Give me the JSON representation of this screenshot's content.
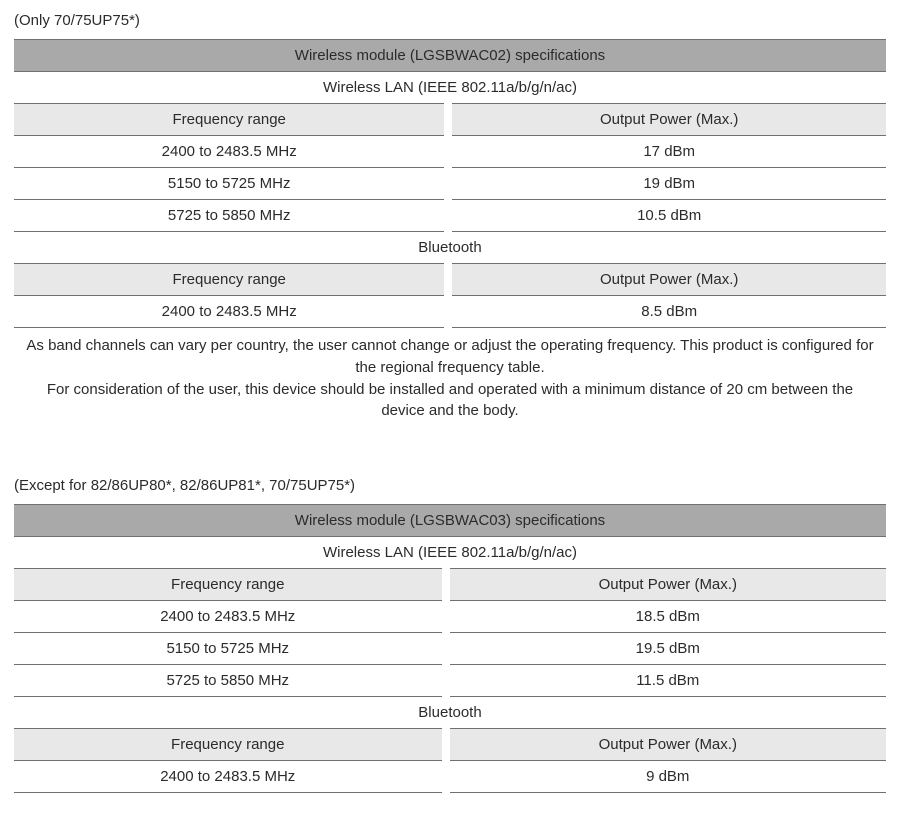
{
  "colors": {
    "title_bg": "#a9a9a9",
    "header_bg": "#e8e8e8",
    "border": "#707070",
    "text": "#2b2b2b",
    "page_bg": "#ffffff"
  },
  "table1": {
    "pre_note": "(Only 70/75UP75*)",
    "title": "Wireless module (LGSBWAC02) specifications",
    "wlan": {
      "section_label": "Wireless LAN (IEEE 802.11a/b/g/n/ac)",
      "col_freq": "Frequency range",
      "col_power": "Output Power (Max.)",
      "rows": [
        {
          "freq": "2400 to 2483.5 MHz",
          "power": "17 dBm"
        },
        {
          "freq": "5150 to 5725 MHz",
          "power": "19 dBm"
        },
        {
          "freq": "5725 to 5850 MHz",
          "power": "10.5 dBm"
        }
      ]
    },
    "bt": {
      "section_label": "Bluetooth",
      "col_freq": "Frequency range",
      "col_power": "Output Power (Max.)",
      "rows": [
        {
          "freq": "2400 to 2483.5 MHz",
          "power": "8.5 dBm"
        }
      ]
    },
    "footnote_line1": "As band channels can vary per country, the user cannot change or adjust the operating frequency. This product is configured for the regional frequency table.",
    "footnote_line2": "For consideration of the user, this device should be installed and operated with a minimum distance of 20 cm between the device and the body."
  },
  "table2": {
    "pre_note": "(Except for 82/86UP80*, 82/86UP81*, 70/75UP75*)",
    "title": "Wireless module (LGSBWAC03) specifications",
    "wlan": {
      "section_label": "Wireless LAN (IEEE 802.11a/b/g/n/ac)",
      "col_freq": "Frequency range",
      "col_power": "Output Power (Max.)",
      "rows": [
        {
          "freq": "2400 to 2483.5 MHz",
          "power": "18.5 dBm"
        },
        {
          "freq": "5150 to 5725 MHz",
          "power": "19.5 dBm"
        },
        {
          "freq": "5725 to 5850 MHz",
          "power": "11.5 dBm"
        }
      ]
    },
    "bt": {
      "section_label": "Bluetooth",
      "col_freq": "Frequency range",
      "col_power": "Output Power (Max.)",
      "rows": [
        {
          "freq": "2400 to 2483.5 MHz",
          "power": "9 dBm"
        }
      ]
    }
  }
}
